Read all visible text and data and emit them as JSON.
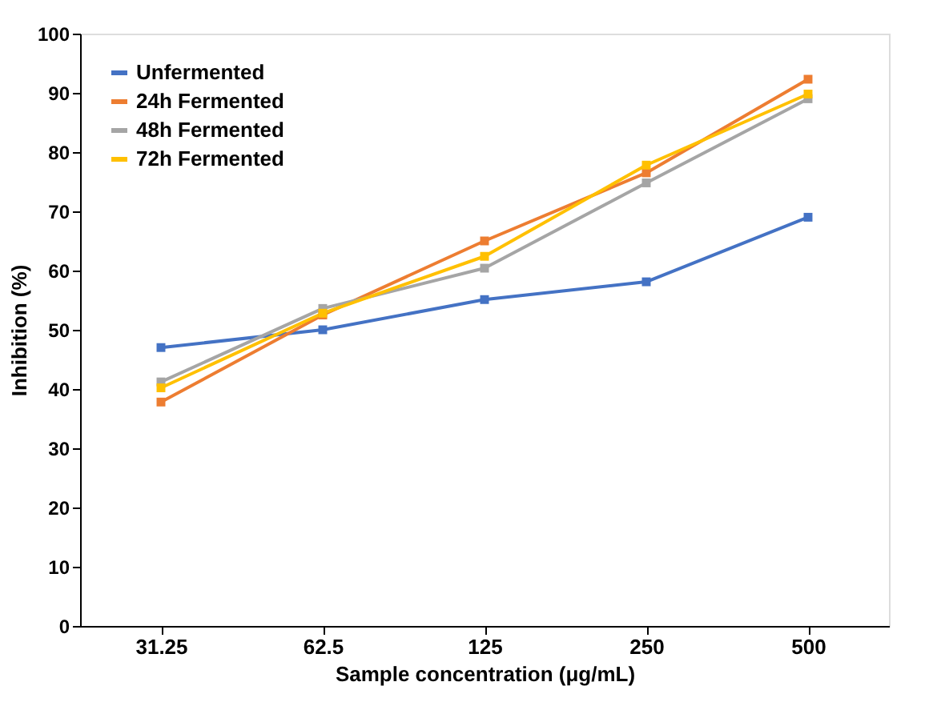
{
  "chart_data": {
    "type": "line",
    "xlabel": "Sample concentration (μg/mL)",
    "ylabel": "Inhibition (%)",
    "categories": [
      "31.25",
      "62.5",
      "125",
      "250",
      "500"
    ],
    "series": [
      {
        "name": "Unfermented",
        "color": "#4472c4",
        "values": [
          47,
          50,
          55.1,
          58.1,
          69
        ]
      },
      {
        "name": "24h Fermented",
        "color": "#ed7d31",
        "values": [
          37.8,
          52.5,
          65,
          76.5,
          92.3
        ]
      },
      {
        "name": "48h Fermented",
        "color": "#a5a5a5",
        "values": [
          41.2,
          53.6,
          60.4,
          74.8,
          89
        ]
      },
      {
        "name": "72h Fermented",
        "color": "#ffc000",
        "values": [
          40.2,
          52.8,
          62.4,
          77.8,
          89.8
        ]
      }
    ],
    "ylim": [
      0,
      100
    ],
    "yticks": [
      0,
      10,
      20,
      30,
      40,
      50,
      60,
      70,
      80,
      90,
      100
    ],
    "grid": false,
    "legend": "top left",
    "marker": "square",
    "line_style": "solid"
  }
}
